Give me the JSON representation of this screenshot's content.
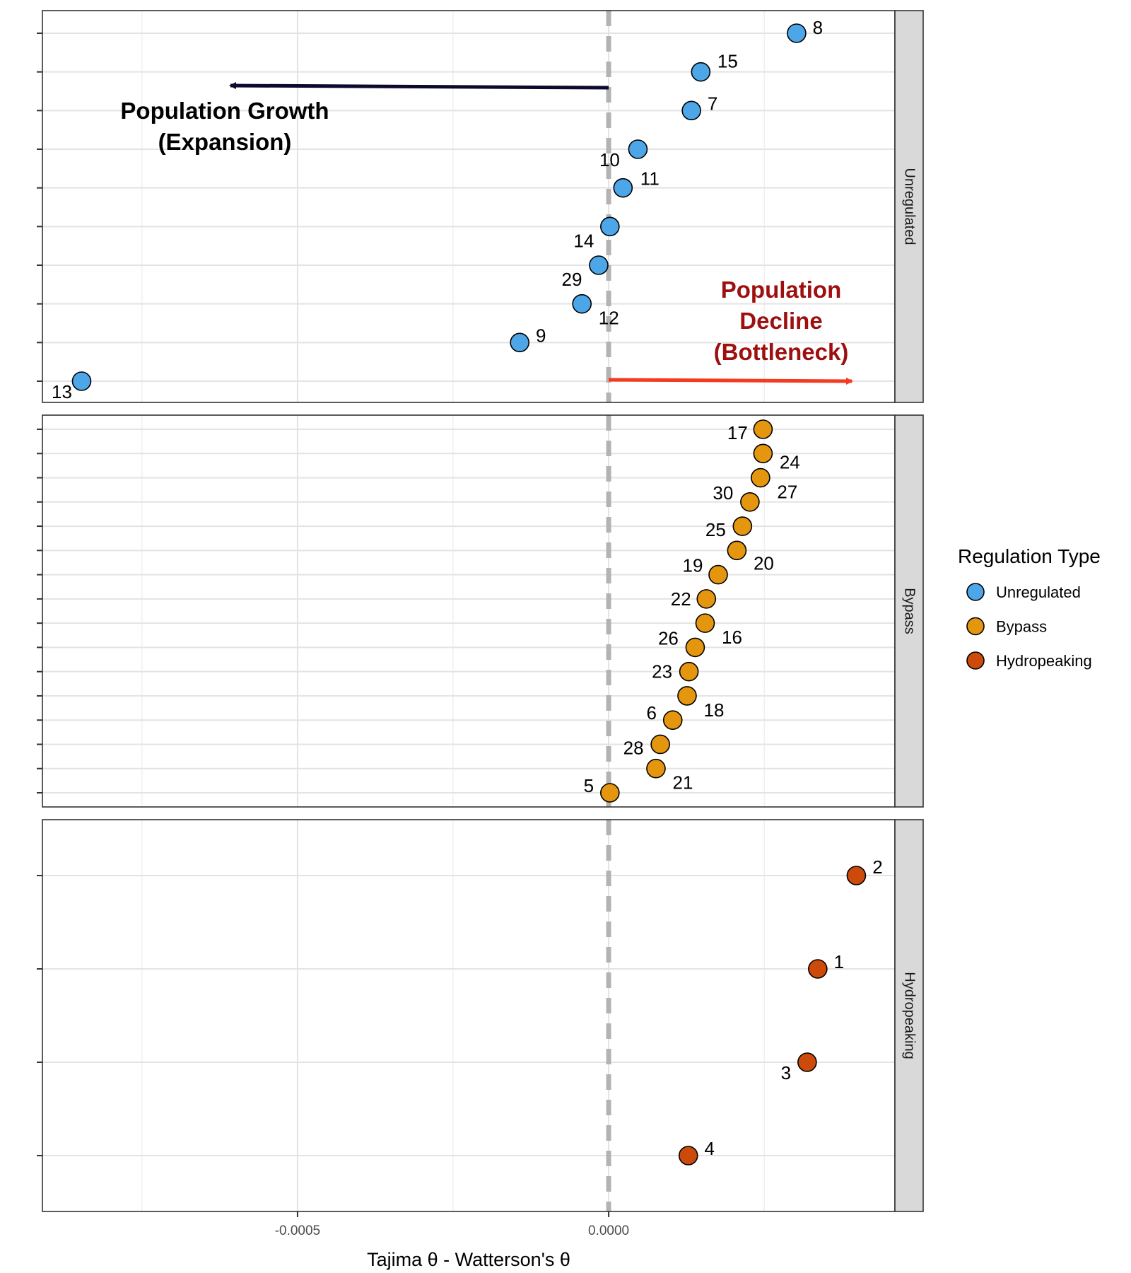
{
  "chart_data": {
    "type": "scatter",
    "xlabel": "Tajima θ - Watterson's θ",
    "xlim": [
      -0.00091,
      0.00046
    ],
    "x_ticks": [
      {
        "value": -0.0005,
        "label": "-0.0005"
      },
      {
        "value": 0.0,
        "label": "0.0000"
      }
    ],
    "reference_line_x": 0.0,
    "grid": true,
    "legend": {
      "title": "Regulation Type",
      "placement": "right",
      "entries": [
        {
          "name": "Unregulated",
          "color": "#4da6e8"
        },
        {
          "name": "Bypass",
          "color": "#e5960f"
        },
        {
          "name": "Hydropeaking",
          "color": "#cc4a0a"
        }
      ]
    },
    "panels": [
      {
        "name": "Unregulated",
        "color": "#4da6e8",
        "points": [
          {
            "label": "8",
            "x": 0.000302
          },
          {
            "label": "15",
            "x": 0.000148
          },
          {
            "label": "7",
            "x": 0.000133
          },
          {
            "label": "10",
            "x": 4.7e-05
          },
          {
            "label": "11",
            "x": 2.3e-05
          },
          {
            "label": "14",
            "x": 2e-06
          },
          {
            "label": "29",
            "x": -1.6e-05
          },
          {
            "label": "12",
            "x": -4.3e-05
          },
          {
            "label": "9",
            "x": -0.000143
          },
          {
            "label": "13",
            "x": -0.000847
          }
        ]
      },
      {
        "name": "Bypass",
        "color": "#e5960f",
        "points": [
          {
            "label": "17",
            "x": 0.000248
          },
          {
            "label": "24",
            "x": 0.000248
          },
          {
            "label": "27",
            "x": 0.000244
          },
          {
            "label": "30",
            "x": 0.000227
          },
          {
            "label": "25",
            "x": 0.000215
          },
          {
            "label": "20",
            "x": 0.000206
          },
          {
            "label": "19",
            "x": 0.000176
          },
          {
            "label": "22",
            "x": 0.000157
          },
          {
            "label": "16",
            "x": 0.000155
          },
          {
            "label": "26",
            "x": 0.000139
          },
          {
            "label": "23",
            "x": 0.000129
          },
          {
            "label": "18",
            "x": 0.000126
          },
          {
            "label": "6",
            "x": 0.000103
          },
          {
            "label": "28",
            "x": 8.3e-05
          },
          {
            "label": "21",
            "x": 7.6e-05
          },
          {
            "label": "5",
            "x": 2e-06
          }
        ]
      },
      {
        "name": "Hydropeaking",
        "color": "#cc4a0a",
        "points": [
          {
            "label": "2",
            "x": 0.000398
          },
          {
            "label": "1",
            "x": 0.000336
          },
          {
            "label": "3",
            "x": 0.000319
          },
          {
            "label": "4",
            "x": 0.000128
          }
        ]
      }
    ],
    "annotations": {
      "growth": {
        "lines": [
          "Population Growth",
          "(Expansion)"
        ]
      },
      "decline": {
        "lines": [
          "Population",
          "Decline",
          "(Bottleneck)"
        ]
      }
    }
  }
}
